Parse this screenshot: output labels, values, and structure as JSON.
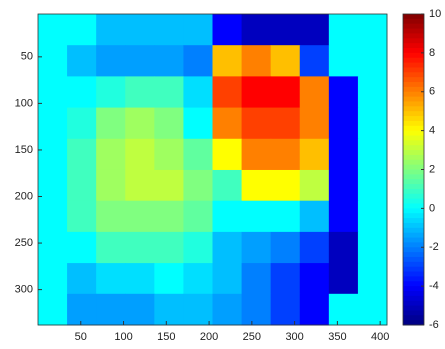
{
  "chart_data": {
    "type": "heatmap",
    "x": [
      17,
      51,
      85,
      119,
      153,
      187,
      221,
      255,
      289,
      323,
      357,
      391
    ],
    "y": [
      21,
      54,
      88,
      121,
      155,
      188,
      221,
      255,
      288,
      321
    ],
    "z": [
      [
        0,
        0,
        -1,
        -1,
        -1,
        -1,
        -4,
        -5,
        -5,
        -5,
        0,
        0
      ],
      [
        0,
        -1,
        -1.5,
        -1.5,
        -1.5,
        -2,
        5,
        6,
        5,
        -3,
        0,
        0
      ],
      [
        0,
        0,
        0.5,
        1,
        1,
        -0.5,
        7,
        8,
        8,
        6,
        -4,
        0
      ],
      [
        0,
        0.5,
        2,
        2.5,
        2,
        0,
        6,
        7,
        7,
        6,
        -4,
        0
      ],
      [
        0,
        1,
        2.5,
        3,
        2.5,
        1.5,
        4,
        6,
        6,
        5,
        -4,
        0
      ],
      [
        0,
        1,
        2.5,
        3,
        3,
        2,
        1,
        4,
        4,
        3,
        -4,
        0
      ],
      [
        0,
        1,
        2,
        2,
        2,
        1.5,
        0,
        0,
        0,
        -1,
        -4,
        0
      ],
      [
        0,
        0,
        1,
        1,
        1,
        0.5,
        -1,
        -1.5,
        -2,
        -3,
        -5,
        0
      ],
      [
        0,
        -1,
        -0.5,
        -0.5,
        0,
        -0.5,
        -1,
        -2,
        -3,
        -4,
        -5,
        0
      ],
      [
        0,
        -1.5,
        -1.5,
        -1.5,
        -1,
        -1,
        -1.5,
        -2,
        -3,
        -4,
        0,
        0
      ]
    ],
    "xlim": [
      0,
      408
    ],
    "ylim": [
      4,
      338
    ],
    "y_reversed": true,
    "xticks": [
      50,
      100,
      150,
      200,
      250,
      300,
      350,
      400
    ],
    "yticks": [
      50,
      100,
      150,
      200,
      250,
      300
    ],
    "colormap": "jet",
    "clim": [
      -6,
      10
    ],
    "cticks": [
      -6,
      -4,
      -2,
      0,
      2,
      4,
      6,
      8,
      10
    ]
  }
}
